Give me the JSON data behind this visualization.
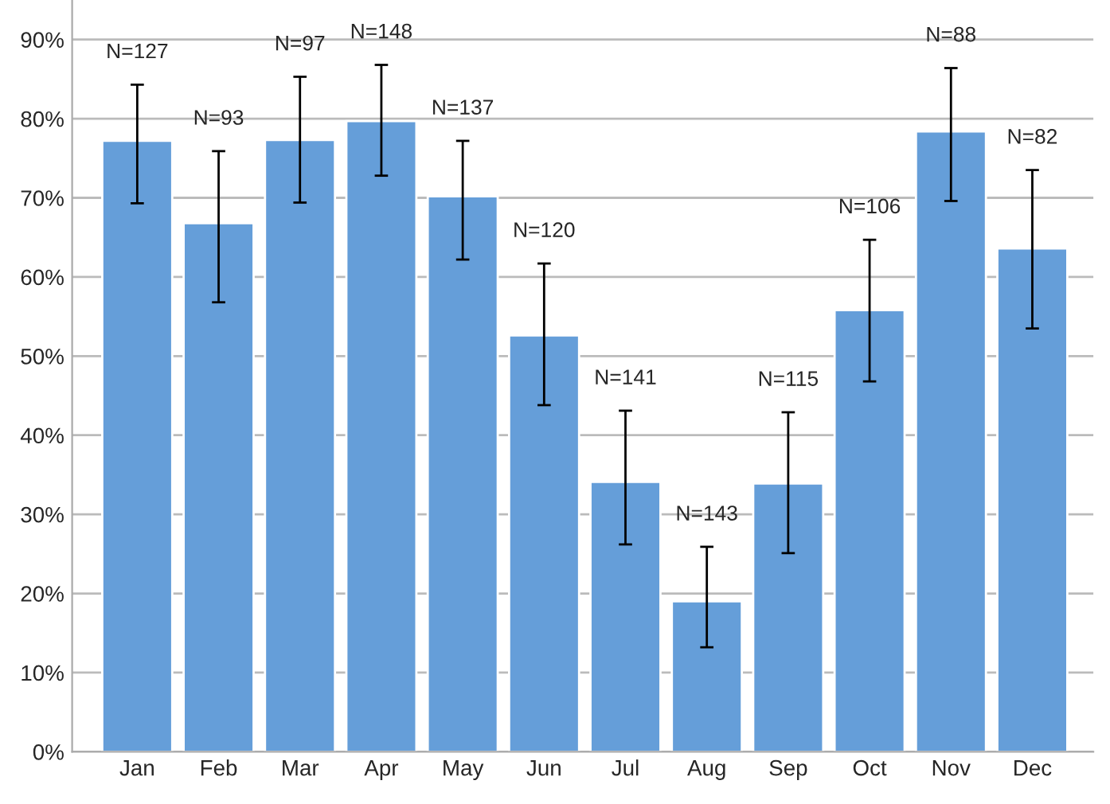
{
  "chart_data": {
    "type": "bar",
    "categories": [
      "Jan",
      "Feb",
      "Mar",
      "Apr",
      "May",
      "Jun",
      "Jul",
      "Aug",
      "Sep",
      "Oct",
      "Nov",
      "Dec"
    ],
    "values": [
      77.2,
      66.8,
      77.3,
      79.7,
      70.2,
      52.6,
      34.1,
      19.0,
      33.9,
      55.8,
      78.4,
      63.6
    ],
    "errors": [
      [
        69.3,
        84.3
      ],
      [
        56.8,
        75.9
      ],
      [
        69.4,
        85.3
      ],
      [
        72.8,
        86.8
      ],
      [
        62.2,
        77.2
      ],
      [
        43.8,
        61.7
      ],
      [
        26.2,
        43.1
      ],
      [
        13.2,
        25.9
      ],
      [
        25.1,
        42.9
      ],
      [
        46.8,
        64.7
      ],
      [
        69.6,
        86.4
      ],
      [
        53.5,
        73.5
      ]
    ],
    "color": "#659ed9",
    "ylim": [
      0,
      95
    ],
    "yticks": [
      {
        "value": 0,
        "label": "0%"
      },
      {
        "value": 10,
        "label": "10%"
      },
      {
        "value": 20,
        "label": "20%"
      },
      {
        "value": 30,
        "label": "30%"
      },
      {
        "value": 40,
        "label": "40%"
      },
      {
        "value": 50,
        "label": "50%"
      },
      {
        "value": 60,
        "label": "60%"
      },
      {
        "value": 70,
        "label": "70%"
      },
      {
        "value": 80,
        "label": "80%"
      },
      {
        "value": 90,
        "label": "90%"
      }
    ],
    "grid": "y",
    "annotations": [
      "N=127",
      "N=93",
      "N=97",
      "N=148",
      "N=137",
      "N=120",
      "N=141",
      "N=143",
      "N=115",
      "N=106",
      "N=88",
      "N=82"
    ]
  }
}
